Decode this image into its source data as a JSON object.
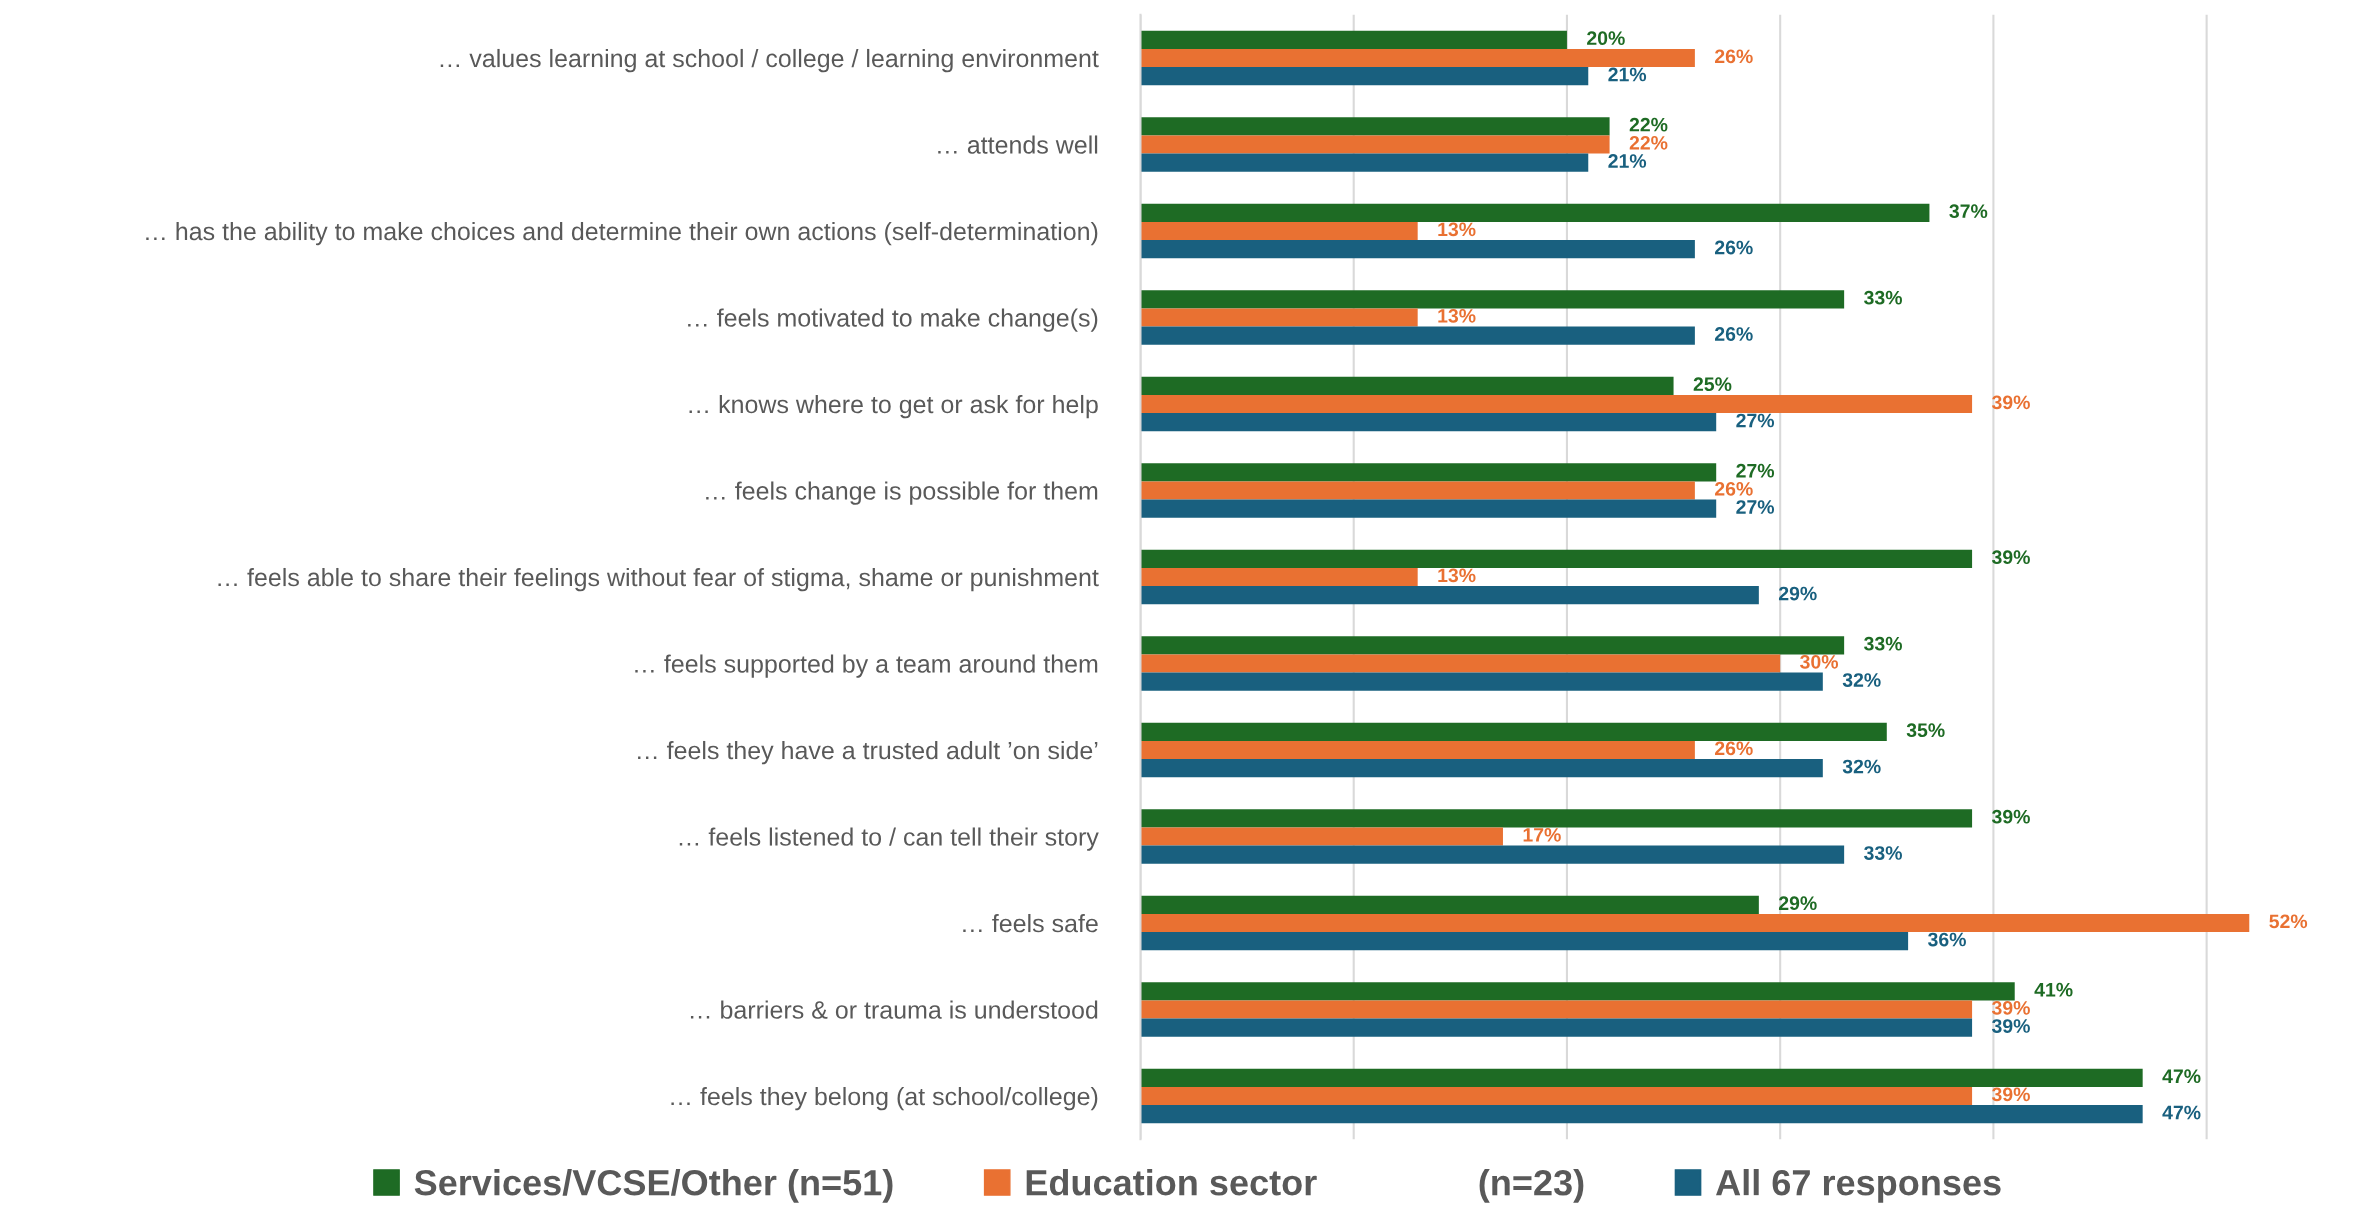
{
  "chart_data": {
    "type": "bar",
    "orientation": "horizontal",
    "categories": [
      "… values learning at school / college / learning environment",
      "… attends well",
      "… has the ability to make choices and determine their own actions (self-determination)",
      "… feels motivated to make change(s)",
      "… knows where to get or ask for help",
      "… feels change is possible for them",
      "… feels able to share their feelings without fear of stigma, shame or punishment",
      "… feels supported by a team around them",
      "… feels they have a trusted adult ’on side’",
      "… feels listened to / can tell their story",
      "… feels safe",
      "… barriers & or trauma is understood",
      "… feels they belong (at school/college)"
    ],
    "series": [
      {
        "name": "Services/VCSE/Other (n=51)",
        "color": "#1e6b24",
        "values": [
          20,
          22,
          37,
          33,
          25,
          27,
          39,
          33,
          35,
          39,
          29,
          41,
          47
        ],
        "value_labels": [
          "20%",
          "22%",
          "37%",
          "33%",
          "25%",
          "27%",
          "39%",
          "33%",
          "35%",
          "39%",
          "29%",
          "41%",
          "47%"
        ]
      },
      {
        "name": "Education sector                (n=23)",
        "color": "#e97132",
        "values": [
          26,
          22,
          13,
          13,
          39,
          26,
          13,
          30,
          26,
          17,
          52,
          39,
          39
        ],
        "value_labels": [
          "26%",
          "22%",
          "13%",
          "13%",
          "39%",
          "26%",
          "13%",
          "30%",
          "26%",
          "17%",
          "52%",
          "39%",
          "39%"
        ]
      },
      {
        "name": "All 67 responses",
        "color": "#19607f",
        "values": [
          21,
          21,
          26,
          26,
          27,
          27,
          29,
          32,
          32,
          33,
          36,
          39,
          47
        ],
        "value_labels": [
          "21%",
          "21%",
          "26%",
          "26%",
          "27%",
          "27%",
          "29%",
          "32%",
          "32%",
          "33%",
          "36%",
          "39%",
          "47%"
        ]
      }
    ],
    "xticks": [
      {
        "value": 0,
        "label": null
      },
      {
        "value": 10,
        "label": null
      },
      {
        "value": 20,
        "label": null
      },
      {
        "value": 30,
        "label": null
      },
      {
        "value": 40,
        "label": null
      },
      {
        "value": 50,
        "label": null
      }
    ],
    "grid": "x",
    "legend": "bottom",
    "tick_labels": "y"
  }
}
